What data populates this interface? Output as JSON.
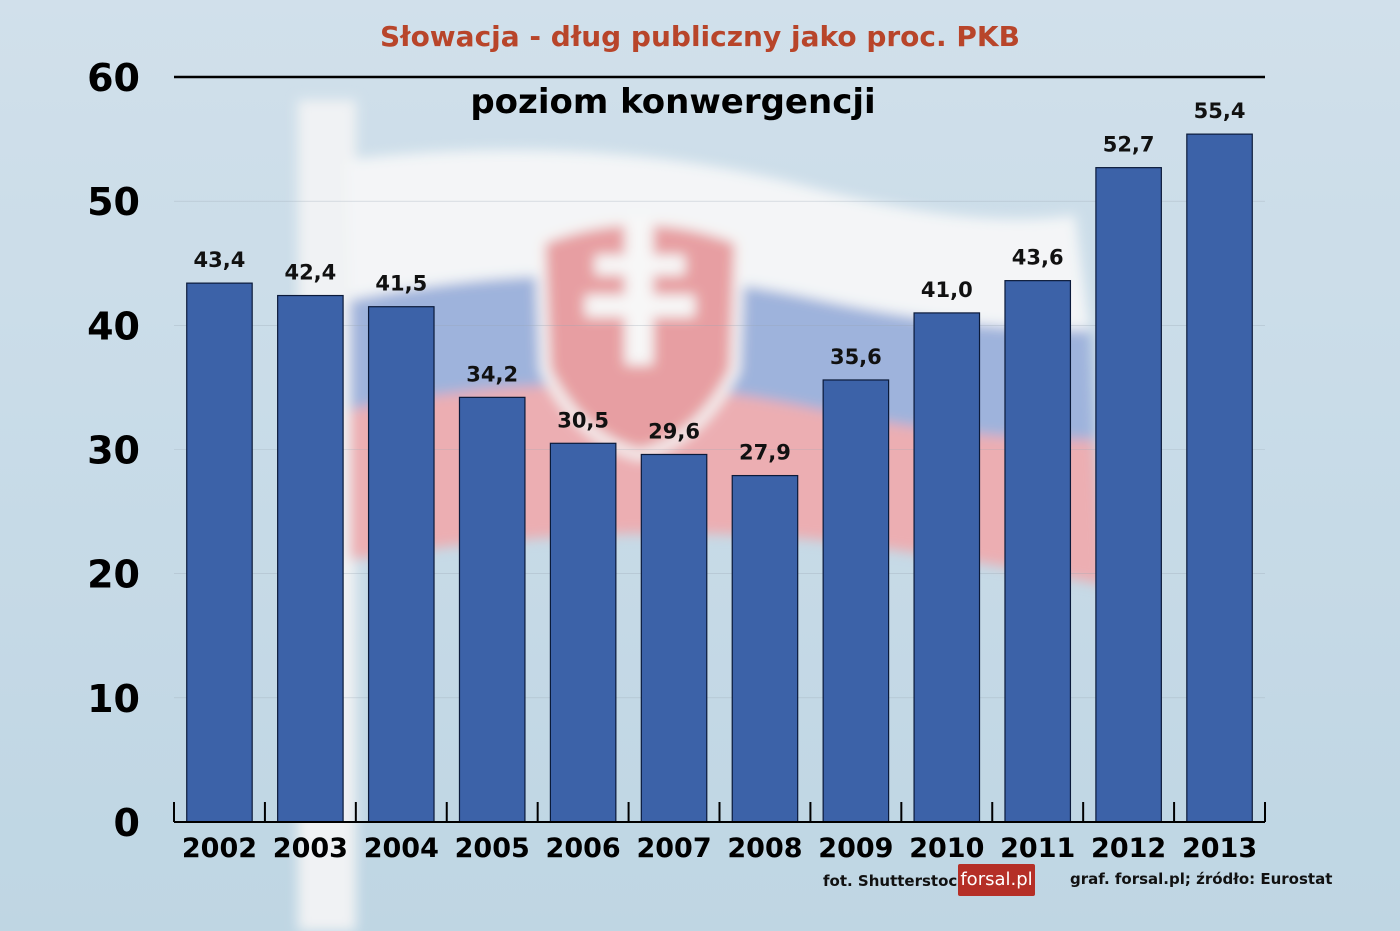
{
  "chart_data": {
    "type": "bar",
    "title": "Słowacja - dług publiczny jako proc. PKB",
    "reference_line": {
      "label": "poziom konwergencji",
      "value": 60
    },
    "categories": [
      "2002",
      "2003",
      "2004",
      "2005",
      "2006",
      "2007",
      "2008",
      "2009",
      "2010",
      "2011",
      "2012",
      "2013"
    ],
    "values": [
      43.4,
      42.4,
      41.5,
      34.2,
      30.5,
      29.6,
      27.9,
      35.6,
      41.0,
      43.6,
      52.7,
      55.4
    ],
    "data_labels": [
      "43,4",
      "42,4",
      "41,5",
      "34,2",
      "30,5",
      "29,6",
      "27,9",
      "35,6",
      "41,0",
      "43,6",
      "52,7",
      "55,4"
    ],
    "yticks": [
      "0",
      "10",
      "20",
      "30",
      "40",
      "50",
      "60"
    ],
    "ylim": [
      0,
      60
    ],
    "grid": true,
    "bar_color": "#3c62a8"
  },
  "footer": {
    "photo_credit": "fot. Shutterstock",
    "logo": "forsal.pl",
    "source": "graf. forsal.pl;  źródło: Eurostat"
  }
}
